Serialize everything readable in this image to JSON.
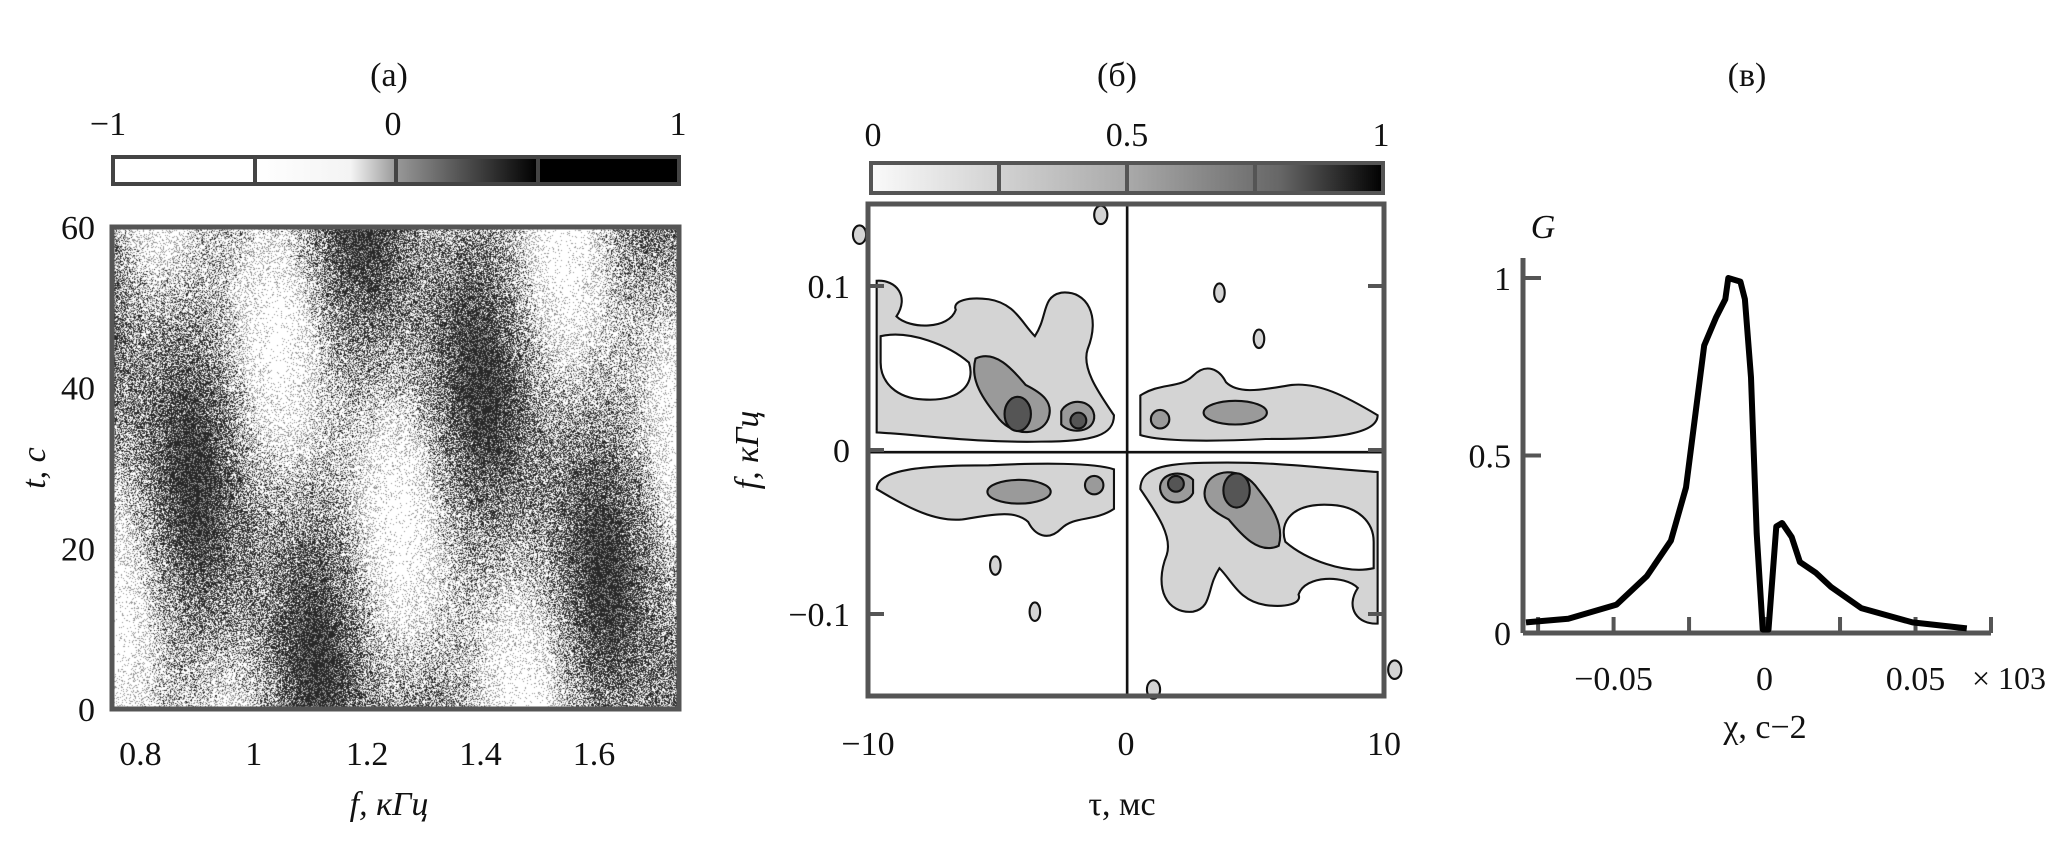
{
  "chart_data": [
    {
      "panel_label": "(a)",
      "type": "heatmap",
      "xlabel": "f, кГц",
      "ylabel": "t, с",
      "xlim": [
        0.75,
        1.75
      ],
      "ylim": [
        0,
        60
      ],
      "xticks": [
        "0.8",
        "1",
        "1.2",
        "1.4",
        "1.6"
      ],
      "yticks": [
        "0",
        "20",
        "40",
        "60"
      ],
      "colorbar": {
        "ticks": [
          "−1",
          "0",
          "1"
        ],
        "range": [
          -1,
          1
        ],
        "colormap": "white-to-black grayscale"
      }
    },
    {
      "panel_label": "(б)",
      "type": "contour",
      "xlabel": "τ, мс",
      "ylabel": "f, кГц",
      "xlim": [
        -10,
        10
      ],
      "ylim": [
        -0.15,
        0.15
      ],
      "xticks": [
        "−10",
        "0",
        "10"
      ],
      "yticks": [
        "−0.1",
        "0",
        "0.1"
      ],
      "colorbar": {
        "ticks": [
          "0",
          "0.5",
          "1"
        ],
        "range": [
          0,
          1
        ],
        "colormap": "white-to-black grayscale"
      }
    },
    {
      "panel_label": "(в)",
      "type": "line",
      "xlabel": "χ, с−2",
      "ylabel": "G",
      "x_multiplier": "× 103",
      "xlim": [
        -0.08,
        0.075
      ],
      "ylim": [
        0,
        1
      ],
      "xticks": [
        "−0.05",
        "0",
        "0.05"
      ],
      "yticks": [
        "0",
        "0.5",
        "1"
      ],
      "series": [
        {
          "color": "#000000",
          "x": [
            -0.079,
            -0.065,
            -0.049,
            -0.039,
            -0.031,
            -0.026,
            -0.023,
            -0.02,
            -0.016,
            -0.013,
            -0.012,
            -0.008,
            -0.0065,
            -0.0045,
            -0.0026,
            -0.0006,
            0.0013,
            0.0039,
            0.0058,
            0.009,
            0.0117,
            0.0169,
            0.022,
            0.032,
            0.049,
            0.067
          ],
          "y": [
            0.03,
            0.04,
            0.08,
            0.16,
            0.26,
            0.41,
            0.61,
            0.81,
            0.89,
            0.94,
            1.0,
            0.99,
            0.94,
            0.72,
            0.28,
            0.01,
            0.01,
            0.3,
            0.31,
            0.27,
            0.2,
            0.17,
            0.13,
            0.07,
            0.03,
            0.013
          ]
        }
      ]
    }
  ]
}
